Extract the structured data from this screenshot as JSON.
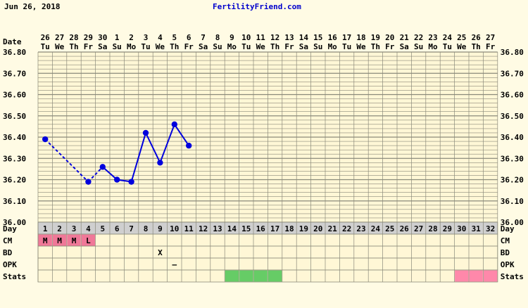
{
  "header": {
    "date": "Jun 26, 2018",
    "site": "FertilityFriend.com"
  },
  "colors": {
    "background": "#fffbe4",
    "grid_cell": "#fff7d6",
    "grid_line": "#8a8a7a",
    "series": "#0000dd",
    "site_link": "#0000cc",
    "day_row": "#cfcfcf",
    "cm_mark": "#f07898",
    "stats_green": "#66cc66",
    "stats_pink": "#ff88aa"
  },
  "chart_data": {
    "type": "line",
    "title": "",
    "xlabel": "",
    "ylabel": "",
    "row_labels": {
      "date": "Date",
      "day": "Day",
      "cm": "CM",
      "bd": "BD",
      "opk": "OPK",
      "stats": "Stats"
    },
    "dates": [
      "26",
      "27",
      "28",
      "29",
      "30",
      "1",
      "2",
      "3",
      "4",
      "5",
      "6",
      "7",
      "8",
      "9",
      "10",
      "11",
      "12",
      "13",
      "14",
      "15",
      "16",
      "17",
      "18",
      "19",
      "20",
      "21",
      "22",
      "23",
      "24",
      "25",
      "26",
      "27"
    ],
    "weekdays": [
      "Tu",
      "We",
      "Th",
      "Fr",
      "Sa",
      "Su",
      "Mo",
      "Tu",
      "We",
      "Th",
      "Fr",
      "Sa",
      "Su",
      "Mo",
      "Tu",
      "We",
      "Th",
      "Fr",
      "Sa",
      "Su",
      "Mo",
      "Tu",
      "We",
      "Th",
      "Fr",
      "Sa",
      "Su",
      "Mo",
      "Tu",
      "We",
      "Th",
      "Fr"
    ],
    "days": [
      1,
      2,
      3,
      4,
      5,
      6,
      7,
      8,
      9,
      10,
      11,
      12,
      13,
      14,
      15,
      16,
      17,
      18,
      19,
      20,
      21,
      22,
      23,
      24,
      25,
      26,
      27,
      28,
      29,
      30,
      31,
      32
    ],
    "ylim": [
      36.0,
      36.8
    ],
    "y_ticks": [
      "36.00",
      "36.10",
      "36.20",
      "36.30",
      "36.40",
      "36.50",
      "36.60",
      "36.70",
      "36.80"
    ],
    "grid": true,
    "temperatures": [
      {
        "day": 1,
        "value": 36.39
      },
      {
        "day": 2,
        "value": null
      },
      {
        "day": 3,
        "value": null
      },
      {
        "day": 4,
        "value": 36.19
      },
      {
        "day": 5,
        "value": 36.26
      },
      {
        "day": 6,
        "value": 36.2
      },
      {
        "day": 7,
        "value": 36.19
      },
      {
        "day": 8,
        "value": 36.42
      },
      {
        "day": 9,
        "value": 36.28
      },
      {
        "day": 10,
        "value": 36.46
      },
      {
        "day": 11,
        "value": 36.36
      }
    ],
    "dashed_segments": [
      [
        1,
        4
      ],
      [
        4,
        5
      ]
    ],
    "cm": [
      {
        "day": 1,
        "label": "M"
      },
      {
        "day": 2,
        "label": "M"
      },
      {
        "day": 3,
        "label": "M"
      },
      {
        "day": 4,
        "label": "L"
      }
    ],
    "bd": [
      {
        "day": 9,
        "label": "X"
      }
    ],
    "opk": [
      {
        "day": 10,
        "label": "–"
      }
    ],
    "stats": [
      {
        "day": 14,
        "color": "green"
      },
      {
        "day": 15,
        "color": "green"
      },
      {
        "day": 16,
        "color": "green"
      },
      {
        "day": 17,
        "color": "green"
      },
      {
        "day": 30,
        "color": "pink"
      },
      {
        "day": 31,
        "color": "pink"
      },
      {
        "day": 32,
        "color": "pink"
      }
    ]
  }
}
